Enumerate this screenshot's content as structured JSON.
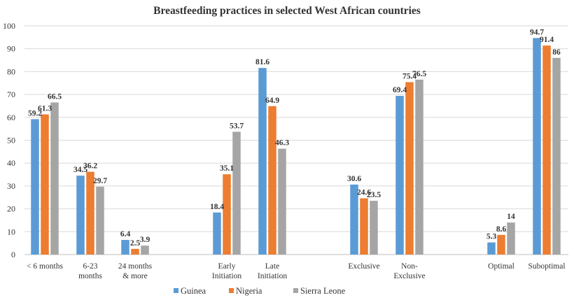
{
  "chart_data": {
    "type": "bar",
    "title": "Breastfeeding practices in selected West African countries",
    "xlabel": "",
    "ylabel": "",
    "ylim": [
      0,
      100
    ],
    "yticks": [
      0,
      10,
      20,
      30,
      40,
      50,
      60,
      70,
      80,
      90,
      100
    ],
    "grid": true,
    "legend_position": "bottom",
    "categories": [
      [
        "< 6 months"
      ],
      [
        "6-23",
        "months"
      ],
      [
        "24 months",
        "& more"
      ],
      [
        "Early",
        "Initiation"
      ],
      [
        "Late",
        "Initiation"
      ],
      [
        "Exclusive"
      ],
      [
        "Non-",
        "Exclusive"
      ],
      [
        "Optimal"
      ],
      [
        "Suboptimal"
      ]
    ],
    "series": [
      {
        "name": "Guinea",
        "color": "#5b9bd5",
        "values": [
          59.2,
          34.5,
          6.4,
          18.4,
          81.6,
          30.6,
          69.4,
          5.3,
          94.7
        ],
        "labels": [
          "59.2",
          "34.5",
          "6.4",
          "18.4",
          "81.6",
          "30.6",
          "69.4",
          "5.3",
          "94.7"
        ]
      },
      {
        "name": "Nigeria",
        "color": "#ed7d31",
        "values": [
          61.3,
          36.2,
          2.5,
          35.1,
          64.9,
          24.6,
          75.4,
          8.6,
          91.4
        ],
        "labels": [
          "61.3",
          "36.2",
          "2.5",
          "35.1",
          "64.9",
          "24.6",
          "75.4",
          "8.6",
          "91.4"
        ]
      },
      {
        "name": "Sierra Leone",
        "color": "#a5a5a5",
        "values": [
          66.5,
          29.7,
          3.9,
          53.7,
          46.3,
          23.5,
          76.5,
          14,
          86
        ],
        "labels": [
          "66.5",
          "29.7",
          "3.9",
          "53.7",
          "46.3",
          "23.5",
          "76.5",
          "14",
          "86"
        ]
      }
    ]
  }
}
